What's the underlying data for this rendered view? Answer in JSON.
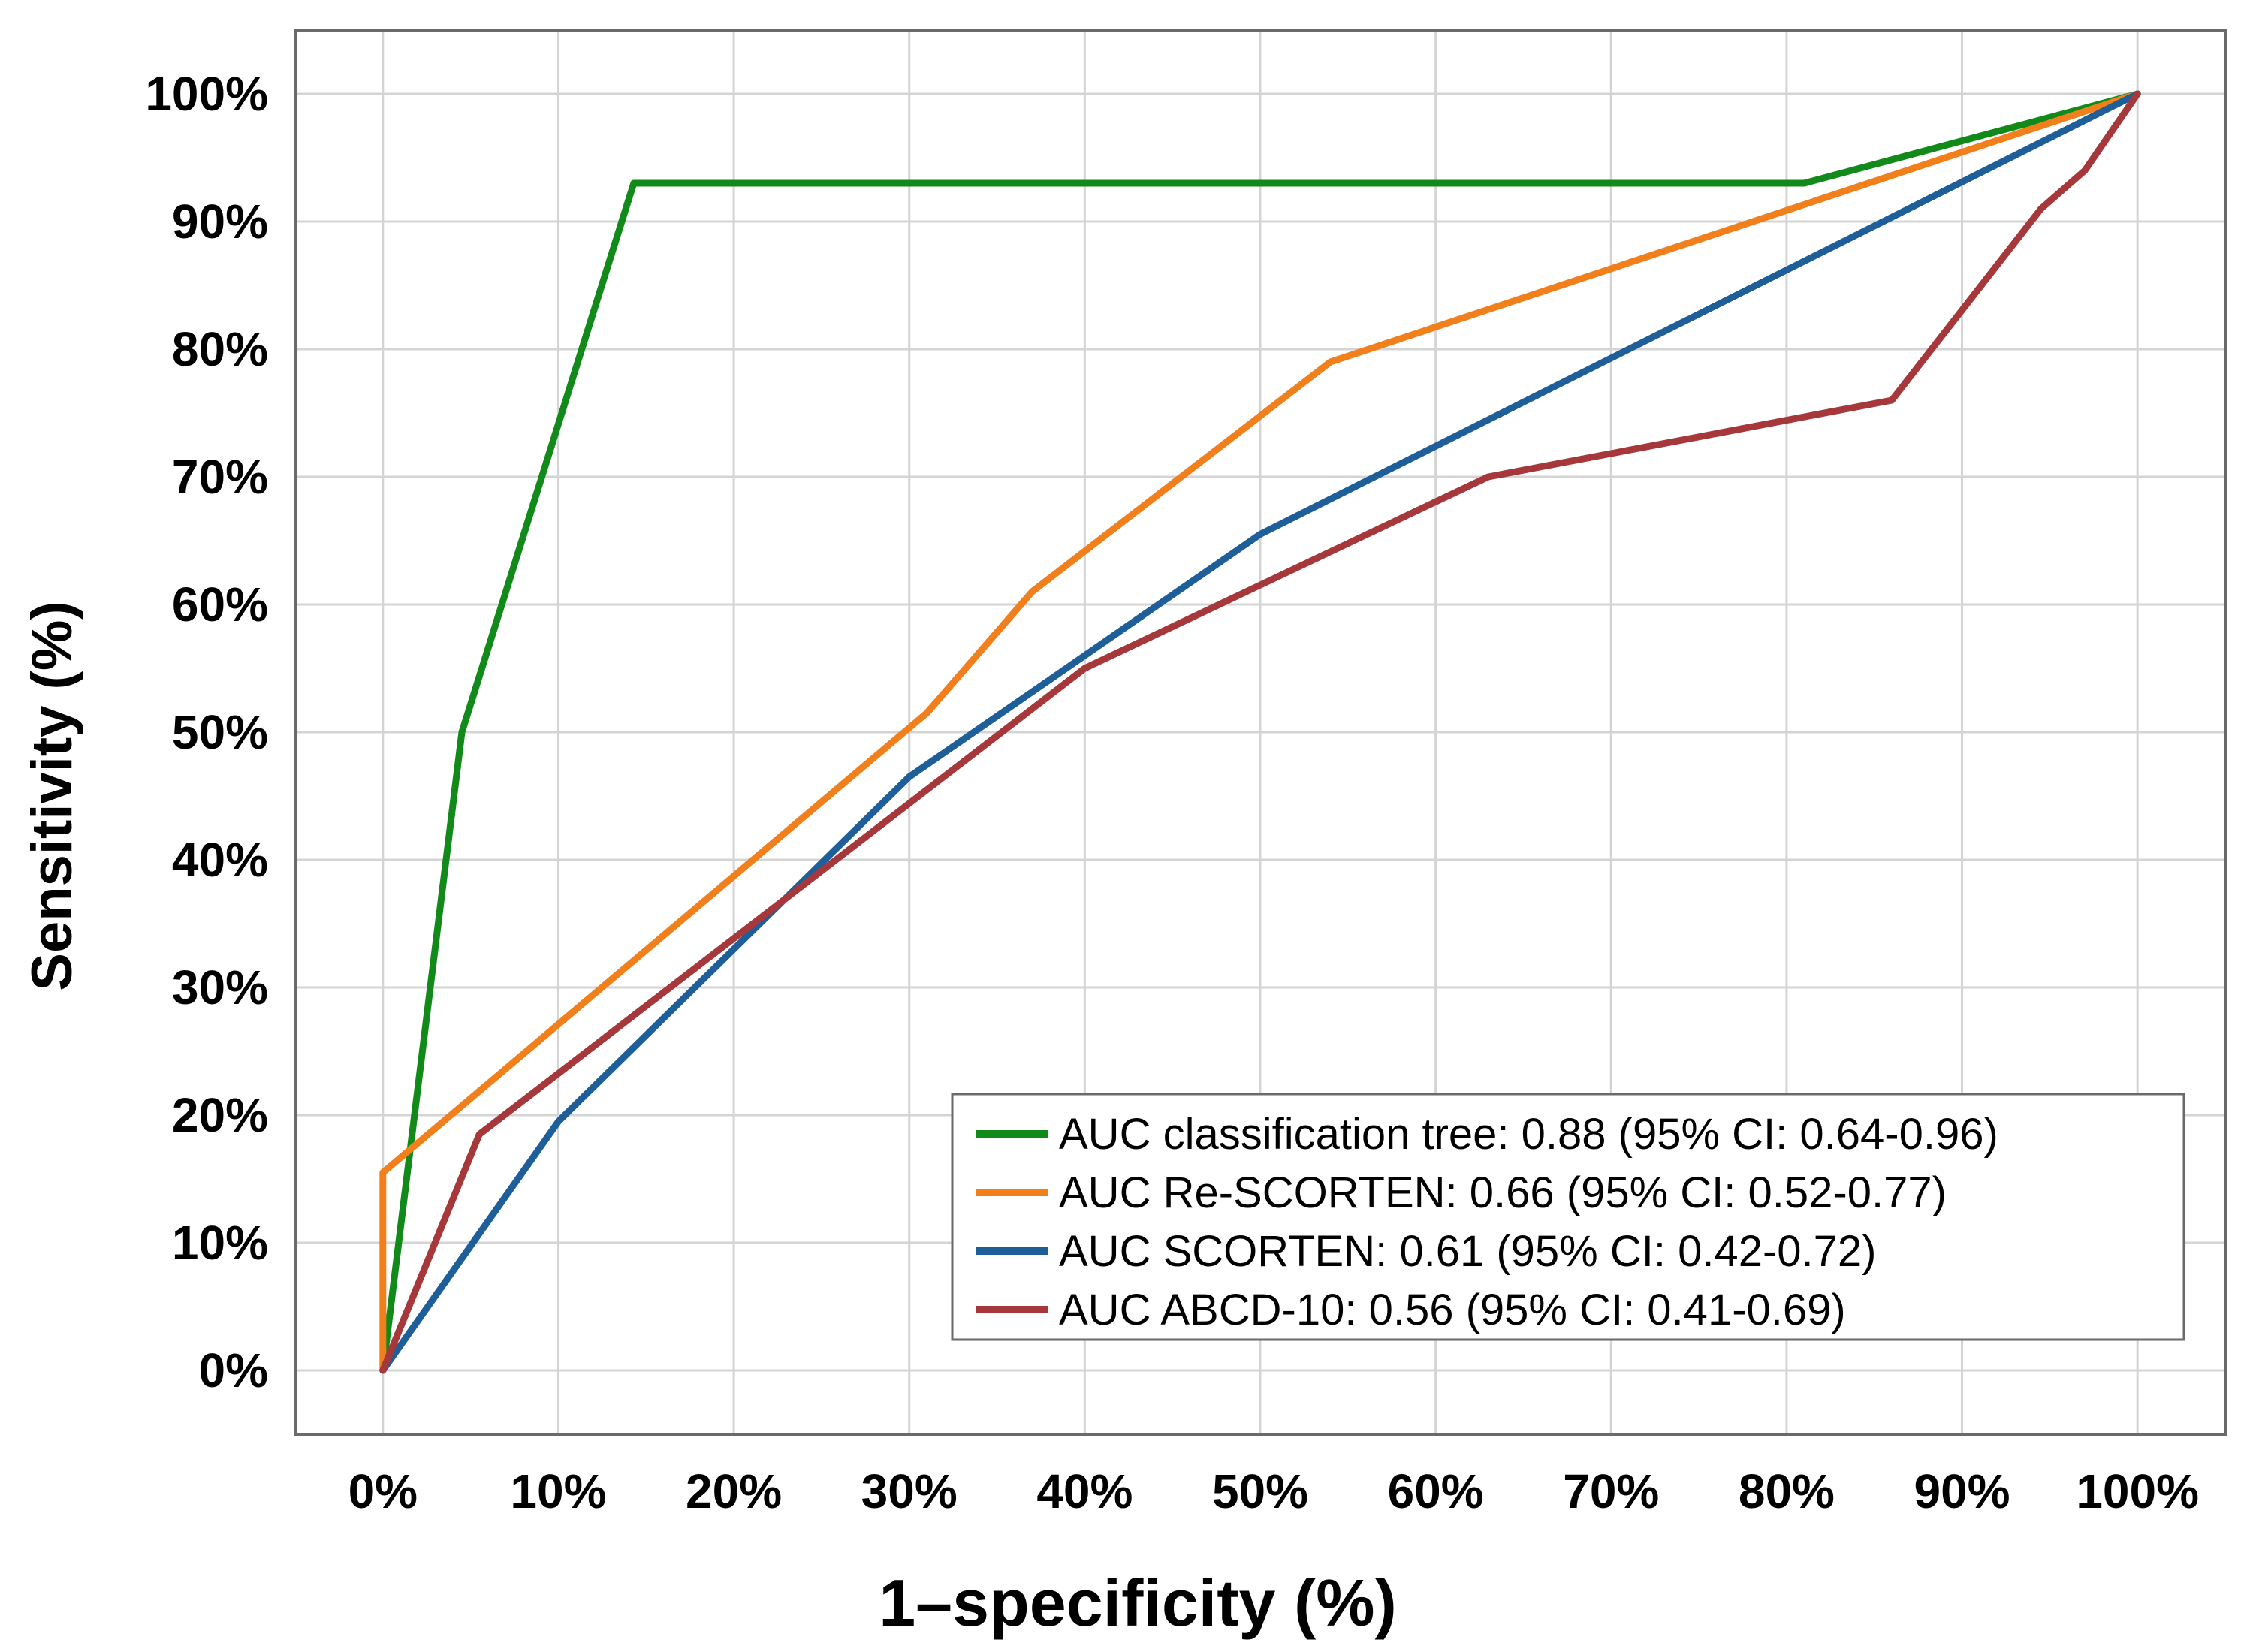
{
  "chart_data": {
    "type": "line",
    "title": "",
    "xlabel": "1–specificity (%)",
    "ylabel": "Sensitivity (%)",
    "xlim": [
      -5,
      105
    ],
    "ylim": [
      -5,
      105
    ],
    "x_ticks": [
      0,
      10,
      20,
      30,
      40,
      50,
      60,
      70,
      80,
      90,
      100
    ],
    "y_ticks": [
      0,
      10,
      20,
      30,
      40,
      50,
      60,
      70,
      80,
      90,
      100
    ],
    "x_tick_labels": [
      "0%",
      "10%",
      "20%",
      "30%",
      "40%",
      "50%",
      "60%",
      "70%",
      "80%",
      "90%",
      "100%"
    ],
    "y_tick_labels": [
      "0%",
      "10%",
      "20%",
      "30%",
      "40%",
      "50%",
      "60%",
      "70%",
      "80%",
      "90%",
      "100%"
    ],
    "grid": true,
    "legend_position": "bottom-right",
    "series": [
      {
        "name": "AUC classification tree: 0.88 (95% CI: 0.64-0.96)",
        "color": "#118a1a",
        "points": [
          [
            0,
            0
          ],
          [
            4.5,
            50
          ],
          [
            14.3,
            93
          ],
          [
            81,
            93
          ],
          [
            100,
            100
          ]
        ]
      },
      {
        "name": "AUC Re-SCORTEN: 0.66 (95% CI: 0.52-0.77)",
        "color": "#f07f1c",
        "points": [
          [
            0,
            0
          ],
          [
            0,
            15.5
          ],
          [
            31,
            51.5
          ],
          [
            37,
            61
          ],
          [
            54,
            79
          ],
          [
            100,
            100
          ]
        ]
      },
      {
        "name": "AUC SCORTEN: 0.61 (95% CI: 0.42-0.72)",
        "color": "#1f5f99",
        "points": [
          [
            0,
            0
          ],
          [
            10,
            19.5
          ],
          [
            30,
            46.5
          ],
          [
            50,
            65.5
          ],
          [
            100,
            100
          ]
        ]
      },
      {
        "name": "AUC ABCD-10: 0.56 (95% CI: 0.41-0.69)",
        "color": "#a6373a",
        "points": [
          [
            0,
            0
          ],
          [
            5.5,
            18.5
          ],
          [
            40,
            55
          ],
          [
            63,
            70
          ],
          [
            86,
            76
          ],
          [
            94.5,
            91
          ],
          [
            97,
            94
          ],
          [
            100,
            100
          ]
        ]
      }
    ]
  }
}
